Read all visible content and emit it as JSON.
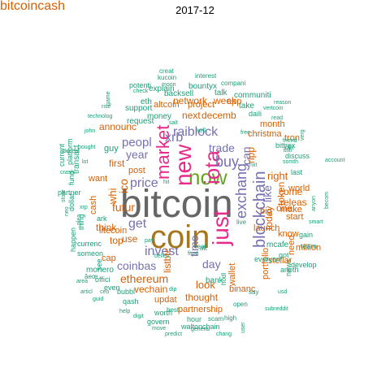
{
  "title": "2017-12",
  "palette": {
    "teal": "#1b9e77",
    "orange": "#d95f02",
    "purple": "#7570b3",
    "pink": "#e7298a",
    "green": "#66a61e",
    "gold": "#e6ab02",
    "brown": "#a6761d",
    "gray": "#666666"
  },
  "words": [
    {
      "text": "bitcoin",
      "color": "gray"
    },
    {
      "text": "coin",
      "color": "brown"
    },
    {
      "text": "now",
      "color": "green"
    },
    {
      "text": "just",
      "color": "pink"
    },
    {
      "text": "new",
      "color": "pink"
    },
    {
      "text": "iota",
      "color": "pink"
    },
    {
      "text": "market",
      "color": "pink"
    },
    {
      "text": "buy",
      "color": "purple"
    },
    {
      "text": "blockchain",
      "color": "purple"
    },
    {
      "text": "exchang",
      "color": "purple"
    },
    {
      "text": "xrb",
      "color": "purple"
    },
    {
      "text": "raiblock",
      "color": "purple"
    },
    {
      "text": "trade",
      "color": "purple"
    },
    {
      "text": "invest",
      "color": "purple"
    },
    {
      "text": "price",
      "color": "purple"
    },
    {
      "text": "get",
      "color": "purple"
    },
    {
      "text": "year",
      "color": "purple"
    },
    {
      "text": "peopl",
      "color": "purple"
    },
    {
      "text": "coinbas",
      "color": "purple"
    },
    {
      "text": "day",
      "color": "purple"
    },
    {
      "text": "time",
      "color": "purple"
    },
    {
      "text": "can",
      "color": "purple"
    },
    {
      "text": "like",
      "color": "purple"
    },
    {
      "text": "ethereum",
      "color": "orange"
    },
    {
      "text": "ico",
      "color": "orange"
    },
    {
      "text": "futur",
      "color": "orange"
    },
    {
      "text": "whi",
      "color": "orange"
    },
    {
      "text": "think",
      "color": "orange"
    },
    {
      "text": "top",
      "color": "orange"
    },
    {
      "text": "use",
      "color": "orange"
    },
    {
      "text": "look",
      "color": "orange"
    },
    {
      "text": "listbtc",
      "color": "orange"
    },
    {
      "text": "vechain",
      "color": "orange"
    },
    {
      "text": "right",
      "color": "orange"
    },
    {
      "text": "token",
      "color": "orange"
    },
    {
      "text": "today",
      "color": "orange"
    },
    {
      "text": "come",
      "color": "orange"
    },
    {
      "text": "ripp",
      "color": "orange"
    },
    {
      "text": "releas",
      "color": "orange"
    },
    {
      "text": "one",
      "color": "orange"
    },
    {
      "text": "make",
      "color": "orange"
    },
    {
      "text": "start",
      "color": "orange"
    },
    {
      "text": "next",
      "color": "orange"
    },
    {
      "text": "decemb",
      "color": "orange"
    },
    {
      "text": "network",
      "color": "orange"
    },
    {
      "text": "week",
      "color": "orange"
    },
    {
      "text": "announc",
      "color": "orange"
    },
    {
      "text": "first",
      "color": "orange"
    },
    {
      "text": "post",
      "color": "orange"
    },
    {
      "text": "litecoin",
      "color": "orange"
    },
    {
      "text": "cash",
      "color": "orange"
    },
    {
      "text": "cap",
      "color": "orange"
    },
    {
      "text": "thought",
      "color": "orange"
    },
    {
      "text": "updat",
      "color": "orange"
    },
    {
      "text": "partnership",
      "color": "orange"
    },
    {
      "text": "altcoin",
      "color": "orange"
    },
    {
      "text": "project",
      "color": "orange"
    },
    {
      "text": "christma",
      "color": "orange"
    },
    {
      "text": "month",
      "color": "orange"
    },
    {
      "text": "know",
      "color": "orange"
    },
    {
      "text": "stellar",
      "color": "orange"
    },
    {
      "text": "binanc",
      "color": "orange"
    },
    {
      "text": "wallet",
      "color": "orange"
    },
    {
      "text": "launch",
      "color": "orange"
    },
    {
      "text": "portfolio",
      "color": "orange"
    },
    {
      "text": "need",
      "color": "orange"
    },
    {
      "text": "million",
      "color": "orange"
    },
    {
      "text": "world",
      "color": "orange"
    },
    {
      "text": "bitcoincash",
      "color": "orange"
    },
    {
      "text": "tron",
      "color": "orange"
    },
    {
      "text": "big",
      "color": "orange"
    },
    {
      "text": "app",
      "color": "orange"
    },
    {
      "text": "want",
      "color": "orange"
    },
    {
      "text": "request",
      "color": "teal"
    },
    {
      "text": "money",
      "color": "teal"
    },
    {
      "text": "support",
      "color": "teal"
    },
    {
      "text": "eth",
      "color": "teal"
    },
    {
      "text": "backsell",
      "color": "teal"
    },
    {
      "text": "explain",
      "color": "teal"
    },
    {
      "text": "bountyx",
      "color": "teal"
    },
    {
      "text": "potenti",
      "color": "teal"
    },
    {
      "text": "kucoin",
      "color": "teal"
    },
    {
      "text": "creat",
      "color": "teal"
    },
    {
      "text": "interest",
      "color": "teal"
    },
    {
      "text": "compani",
      "color": "teal"
    },
    {
      "text": "talk",
      "color": "teal"
    },
    {
      "text": "communiti",
      "color": "teal"
    },
    {
      "text": "take",
      "color": "teal"
    },
    {
      "text": "guy",
      "color": "teal"
    },
    {
      "text": "transact",
      "color": "teal"
    },
    {
      "text": "platform",
      "color": "teal"
    },
    {
      "text": "current",
      "color": "teal"
    },
    {
      "text": "fund",
      "color": "teal"
    },
    {
      "text": "partner",
      "color": "teal"
    },
    {
      "text": "dollar",
      "color": "teal"
    },
    {
      "text": "thing",
      "color": "teal"
    },
    {
      "text": "happen",
      "color": "teal"
    },
    {
      "text": "currenc",
      "color": "teal"
    },
    {
      "text": "someon",
      "color": "teal"
    },
    {
      "text": "monero",
      "color": "teal"
    },
    {
      "text": "offici",
      "color": "teal"
    },
    {
      "text": "even",
      "color": "teal"
    },
    {
      "text": "bubbl",
      "color": "teal"
    },
    {
      "text": "qash",
      "color": "teal"
    },
    {
      "text": "worth",
      "color": "teal"
    },
    {
      "text": "govern",
      "color": "teal"
    },
    {
      "text": "hour",
      "color": "teal"
    },
    {
      "text": "scam",
      "color": "teal"
    },
    {
      "text": "waltonchain",
      "color": "teal"
    },
    {
      "text": "high",
      "color": "teal"
    },
    {
      "text": "open",
      "color": "teal"
    },
    {
      "text": "say",
      "color": "teal"
    },
    {
      "text": "bank",
      "color": "teal"
    },
    {
      "text": "mcafe",
      "color": "teal"
    },
    {
      "text": "everyon",
      "color": "teal"
    },
    {
      "text": "bittrex",
      "color": "teal"
    },
    {
      "text": "join",
      "color": "teal"
    },
    {
      "text": "develop",
      "color": "teal"
    },
    {
      "text": "gain",
      "color": "teal"
    },
    {
      "text": "team",
      "color": "teal"
    },
    {
      "text": "news",
      "color": "teal"
    },
    {
      "text": "got",
      "color": "teal"
    },
    {
      "text": "anoth",
      "color": "teal"
    },
    {
      "text": "discuss",
      "color": "teal"
    },
    {
      "text": "last",
      "color": "teal"
    },
    {
      "text": "daili",
      "color": "teal"
    },
    {
      "text": "best",
      "color": "teal"
    },
    {
      "text": "live",
      "color": "teal"
    },
    {
      "text": "hodl",
      "color": "teal"
    },
    {
      "text": "ark",
      "color": "teal"
    },
    {
      "text": "see",
      "color": "teal"
    },
    {
      "text": "real",
      "color": "teal"
    },
    {
      "text": "pay",
      "color": "teal"
    },
    {
      "text": "alt",
      "color": "teal"
    },
    {
      "text": "hit",
      "color": "teal"
    },
    {
      "text": "sell",
      "color": "teal"
    },
    {
      "text": "free",
      "color": "teal"
    },
    {
      "text": "dip",
      "color": "teal"
    },
    {
      "text": "help",
      "color": "teal"
    },
    {
      "text": "guid",
      "color": "teal"
    },
    {
      "text": "articl",
      "color": "teal"
    },
    {
      "text": "predict",
      "color": "teal"
    },
    {
      "text": "move",
      "color": "teal"
    },
    {
      "text": "digit",
      "color": "teal"
    },
    {
      "text": "general",
      "color": "teal"
    },
    {
      "text": "chang",
      "color": "teal"
    },
    {
      "text": "subreddit",
      "color": "teal"
    },
    {
      "text": "usd",
      "color": "teal"
    },
    {
      "text": "smart",
      "color": "teal"
    },
    {
      "text": "becom",
      "color": "teal"
    },
    {
      "text": "anyon",
      "color": "teal"
    },
    {
      "text": "account",
      "color": "teal"
    },
    {
      "text": "verg",
      "color": "teal"
    },
    {
      "text": "vertcoin",
      "color": "teal"
    },
    {
      "text": "read",
      "color": "teal"
    },
    {
      "text": "reason",
      "color": "teal"
    },
    {
      "text": "game",
      "color": "teal"
    },
    {
      "text": "rise",
      "color": "teal"
    },
    {
      "text": "check",
      "color": "teal"
    },
    {
      "text": "bought",
      "color": "teal"
    },
    {
      "text": "technolog",
      "color": "teal"
    },
    {
      "text": "decent",
      "color": "teal"
    },
    {
      "text": "crash",
      "color": "teal"
    },
    {
      "text": "store",
      "color": "teal"
    },
    {
      "text": "plea",
      "color": "teal"
    },
    {
      "text": "final",
      "color": "teal"
    },
    {
      "text": "believ",
      "color": "teal"
    },
    {
      "text": "somth",
      "color": "teal"
    },
    {
      "text": "friend",
      "color": "teal"
    },
    {
      "text": "still",
      "color": "teal"
    },
    {
      "text": "ceo",
      "color": "teal"
    },
    {
      "text": "area",
      "color": "teal"
    },
    {
      "text": "âeœ",
      "color": "teal"
    },
    {
      "text": "xrp",
      "color": "teal"
    },
    {
      "text": "lot",
      "color": "teal"
    },
    {
      "text": "neo",
      "color": "teal"
    },
    {
      "text": "john",
      "color": "teal"
    },
    {
      "text": "salt",
      "color": "teal"
    },
    {
      "text": "user",
      "color": "teal"
    },
    {
      "text": "nxt",
      "color": "teal"
    },
    {
      "text": "moon",
      "color": "teal"
    }
  ]
}
